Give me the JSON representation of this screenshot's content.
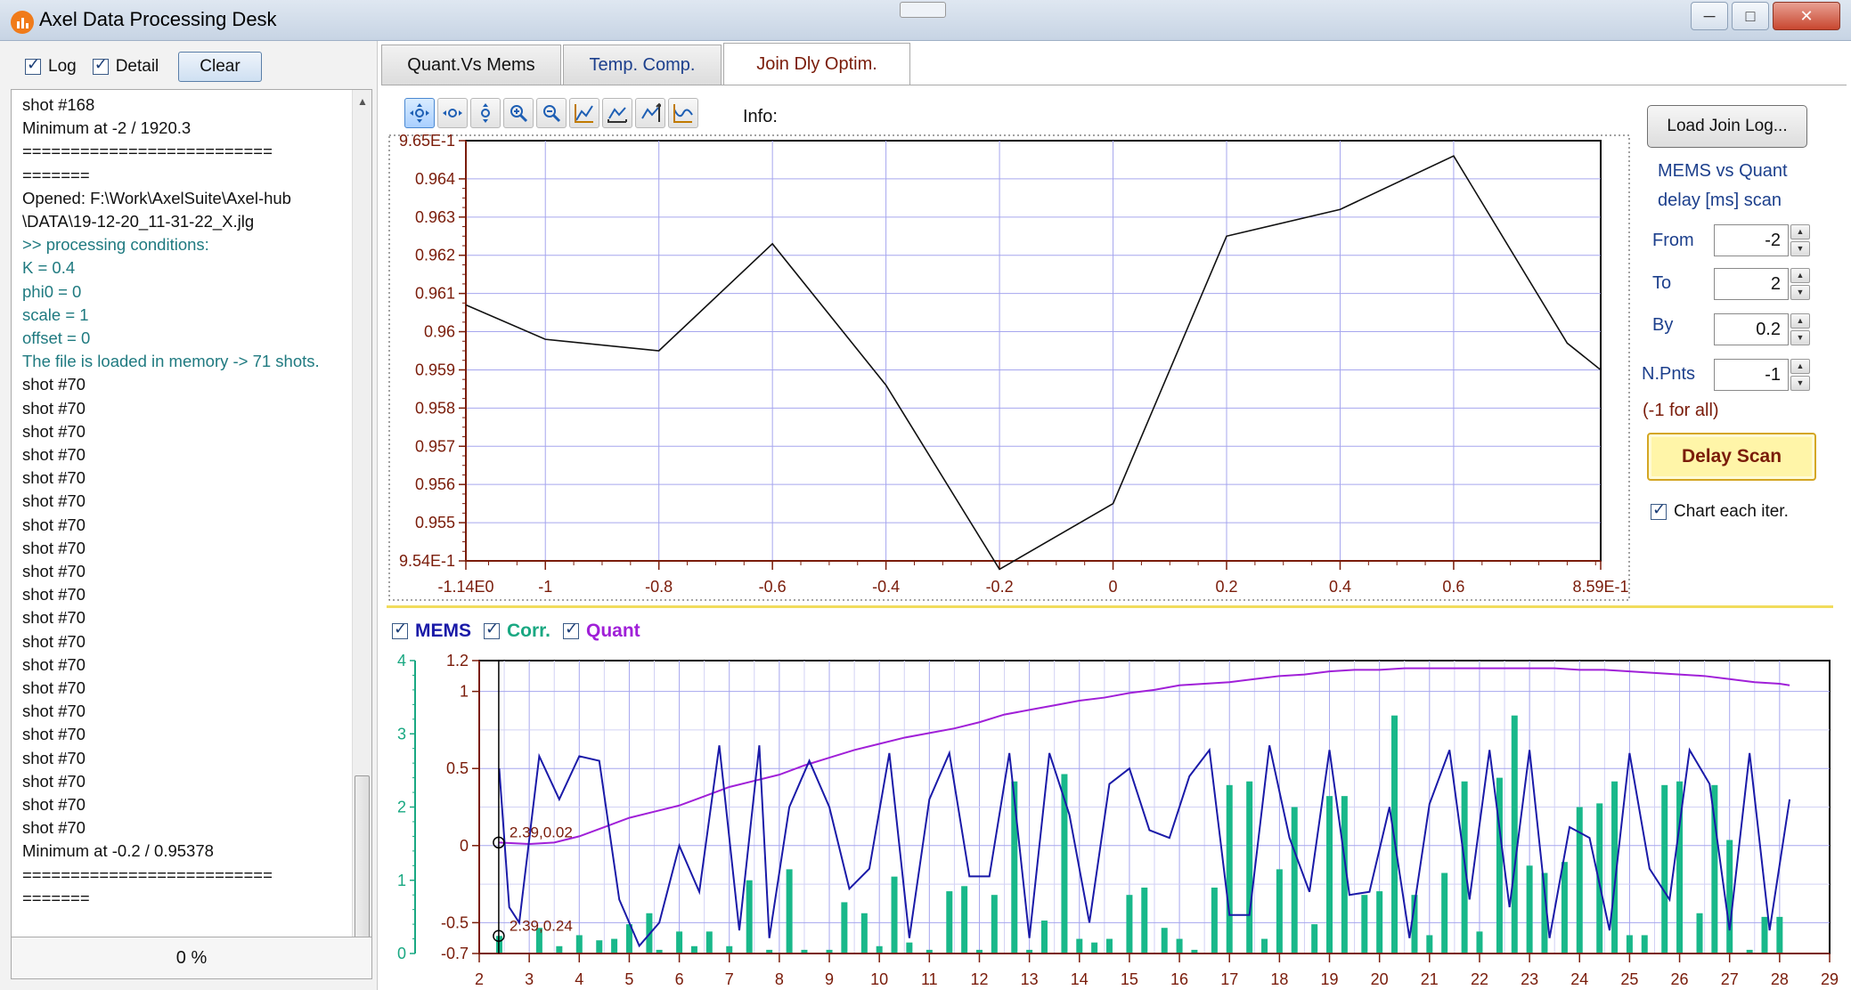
{
  "window": {
    "title": "Axel Data Processing Desk"
  },
  "left_panel": {
    "log_label": "Log",
    "detail_label": "Detail",
    "clear_label": "Clear",
    "progress": "0 %",
    "log_lines": [
      {
        "text": "shot #168",
        "style": "normal"
      },
      {
        "text": "Minimum at -2 / 1920.3",
        "style": "normal"
      },
      {
        "text": "==========================",
        "style": "normal"
      },
      {
        "text": "=======",
        "style": "normal"
      },
      {
        "text": "Opened: F:\\Work\\AxelSuite\\Axel-hub",
        "style": "normal"
      },
      {
        "text": "\\DATA\\19-12-20_11-31-22_X.jlg",
        "style": "normal"
      },
      {
        "text": ">> processing conditions:",
        "style": "teal"
      },
      {
        "text": "K = 0.4",
        "style": "teal"
      },
      {
        "text": "phi0 = 0",
        "style": "teal"
      },
      {
        "text": "scale = 1",
        "style": "teal"
      },
      {
        "text": "offset = 0",
        "style": "teal"
      },
      {
        "text": "The file is loaded in memory -> 71 shots.",
        "style": "teal"
      },
      {
        "text": "shot #70",
        "style": "normal"
      },
      {
        "text": "shot #70",
        "style": "normal"
      },
      {
        "text": "shot #70",
        "style": "normal"
      },
      {
        "text": "shot #70",
        "style": "normal"
      },
      {
        "text": "shot #70",
        "style": "normal"
      },
      {
        "text": "shot #70",
        "style": "normal"
      },
      {
        "text": "shot #70",
        "style": "normal"
      },
      {
        "text": "shot #70",
        "style": "normal"
      },
      {
        "text": "shot #70",
        "style": "normal"
      },
      {
        "text": "shot #70",
        "style": "normal"
      },
      {
        "text": "shot #70",
        "style": "normal"
      },
      {
        "text": "shot #70",
        "style": "normal"
      },
      {
        "text": "shot #70",
        "style": "normal"
      },
      {
        "text": "shot #70",
        "style": "normal"
      },
      {
        "text": "shot #70",
        "style": "normal"
      },
      {
        "text": "shot #70",
        "style": "normal"
      },
      {
        "text": "shot #70",
        "style": "normal"
      },
      {
        "text": "shot #70",
        "style": "normal"
      },
      {
        "text": "shot #70",
        "style": "normal"
      },
      {
        "text": "shot #70",
        "style": "normal"
      },
      {
        "text": "Minimum at -0.2 / 0.95378",
        "style": "normal"
      },
      {
        "text": "==========================",
        "style": "normal"
      },
      {
        "text": "=======",
        "style": "normal"
      }
    ]
  },
  "tabs": [
    {
      "label": "Quant.Vs Mems",
      "active": false,
      "color": "#111111"
    },
    {
      "label": "Temp. Comp.",
      "active": false,
      "color": "#1c3f8c"
    },
    {
      "label": "Join Dly Optim.",
      "active": true,
      "color": "#7a1c0a"
    }
  ],
  "toolbar": {
    "info_label": "Info:",
    "buttons": [
      "pan-icon",
      "pan-horizontal-icon",
      "pan-vertical-icon",
      "zoom-in-icon",
      "zoom-out-icon",
      "autoscale-icon",
      "autoscale-x-icon",
      "autoscale-y-icon",
      "fit-icon"
    ]
  },
  "right_controls": {
    "load_button": "Load Join Log...",
    "scan_title_line1": "MEMS vs Quant",
    "scan_title_line2": "delay [ms] scan",
    "from_label": "From",
    "from_value": "-2",
    "to_label": "To",
    "to_value": "2",
    "by_label": "By",
    "by_value": "0.2",
    "npnts_label": "N.Pnts",
    "npnts_value": "-1",
    "npnts_hint": "(-1 for all)",
    "delay_scan_button": "Delay Scan",
    "chart_each_label": "Chart each iter."
  },
  "legend": {
    "mems_label": "MEMS",
    "corr_label": "Corr.",
    "quant_label": "Quant",
    "mems_color": "#1a1aa8",
    "corr_color": "#19a882",
    "quant_color": "#a020d8"
  },
  "chart_data": [
    {
      "type": "line",
      "x_ticks": [
        "-1.14E0",
        "-1",
        "-0.8",
        "-0.6",
        "-0.4",
        "-0.2",
        "0",
        "0.2",
        "0.4",
        "0.6",
        "8.59E-1"
      ],
      "y_ticks": [
        "9.65E-1",
        "0.964",
        "0.963",
        "0.962",
        "0.961",
        "0.96",
        "0.959",
        "0.958",
        "0.957",
        "0.956",
        "0.955",
        "9.54E-1"
      ],
      "xlim": [
        -1.14,
        0.859
      ],
      "ylim": [
        0.954,
        0.965
      ],
      "x": [
        -1.14,
        -1.0,
        -0.8,
        -0.6,
        -0.4,
        -0.2,
        0.0,
        0.2,
        0.4,
        0.6,
        0.8,
        0.859
      ],
      "y": [
        0.9607,
        0.9598,
        0.9595,
        0.9623,
        0.9586,
        0.95378,
        0.9555,
        0.9625,
        0.9632,
        0.9646,
        0.9597,
        0.959
      ],
      "line_color": "#111111",
      "grid": true
    },
    {
      "type": "line+bar",
      "x_ticks": [
        "2",
        "3",
        "4",
        "5",
        "6",
        "7",
        "8",
        "9",
        "10",
        "11",
        "12",
        "13",
        "14",
        "15",
        "16",
        "17",
        "18",
        "19",
        "20",
        "21",
        "22",
        "23",
        "24",
        "25",
        "26",
        "27",
        "28",
        "29"
      ],
      "xlim": [
        2,
        29
      ],
      "y_left_outer_ticks": [
        "4",
        "3",
        "2",
        "1",
        "0"
      ],
      "y_left_outer_lim": [
        0,
        4
      ],
      "y_left_inner_ticks": [
        "1.2",
        "1",
        "0.5",
        "0",
        "-0.5",
        "-0.7"
      ],
      "y_left_inner_lim": [
        -0.7,
        1.2
      ],
      "cursor_labels": [
        "2.39,0.02",
        "2.39,0.24"
      ],
      "cursor_x": 2.39,
      "mems": {
        "x": [
          2.4,
          2.6,
          2.8,
          3.2,
          3.6,
          4.0,
          4.4,
          4.8,
          5.2,
          5.6,
          6.0,
          6.4,
          6.8,
          7.2,
          7.6,
          7.8,
          8.2,
          8.6,
          9.0,
          9.4,
          9.8,
          10.2,
          10.6,
          11.0,
          11.4,
          11.8,
          12.2,
          12.6,
          13.0,
          13.4,
          13.8,
          14.2,
          14.6,
          15.0,
          15.4,
          15.8,
          16.2,
          16.6,
          17.0,
          17.4,
          17.8,
          18.2,
          18.6,
          19.0,
          19.4,
          19.8,
          20.2,
          20.6,
          21.0,
          21.4,
          21.8,
          22.2,
          22.6,
          23.0,
          23.4,
          23.8,
          24.2,
          24.6,
          25.0,
          25.4,
          25.8,
          26.2,
          26.6,
          27.0,
          27.4,
          27.8,
          28.2
        ],
        "y": [
          0.5,
          -0.4,
          -0.5,
          0.58,
          0.3,
          0.58,
          0.55,
          -0.35,
          -0.65,
          -0.5,
          0.0,
          -0.3,
          0.65,
          -0.55,
          0.65,
          -0.6,
          0.25,
          0.55,
          0.25,
          -0.28,
          -0.15,
          0.6,
          -0.6,
          0.3,
          0.6,
          -0.2,
          -0.2,
          0.6,
          -0.6,
          0.6,
          0.2,
          -0.5,
          0.4,
          0.5,
          0.1,
          0.05,
          0.45,
          0.62,
          -0.45,
          -0.45,
          0.65,
          0.05,
          -0.3,
          0.62,
          -0.32,
          -0.3,
          0.25,
          -0.6,
          0.27,
          0.62,
          -0.35,
          0.62,
          -0.4,
          0.62,
          -0.6,
          0.12,
          0.05,
          -0.55,
          0.6,
          -0.15,
          -0.35,
          0.62,
          0.4,
          -0.55,
          0.6,
          -0.55,
          0.3
        ]
      },
      "quant": {
        "x": [
          2.4,
          3.0,
          3.5,
          4.0,
          4.5,
          5.0,
          5.5,
          6.0,
          6.5,
          7.0,
          7.5,
          8.0,
          8.5,
          9.0,
          9.5,
          10.0,
          10.5,
          11.0,
          11.5,
          12.0,
          12.5,
          13.0,
          13.5,
          14.0,
          14.5,
          15.0,
          15.5,
          16.0,
          16.5,
          17.0,
          17.5,
          18.0,
          18.5,
          19.0,
          19.5,
          20.0,
          20.5,
          21.0,
          21.5,
          22.0,
          22.5,
          23.0,
          23.5,
          24.0,
          24.5,
          25.0,
          25.5,
          26.0,
          26.5,
          27.0,
          27.5,
          28.0,
          28.2
        ],
        "y": [
          0.02,
          0.01,
          0.02,
          0.06,
          0.12,
          0.18,
          0.22,
          0.26,
          0.32,
          0.38,
          0.42,
          0.46,
          0.52,
          0.57,
          0.62,
          0.66,
          0.7,
          0.73,
          0.76,
          0.8,
          0.85,
          0.88,
          0.91,
          0.94,
          0.96,
          0.99,
          1.01,
          1.04,
          1.05,
          1.06,
          1.08,
          1.1,
          1.11,
          1.13,
          1.14,
          1.14,
          1.15,
          1.15,
          1.15,
          1.15,
          1.15,
          1.15,
          1.15,
          1.14,
          1.14,
          1.13,
          1.12,
          1.11,
          1.1,
          1.08,
          1.06,
          1.05,
          1.04
        ]
      },
      "corr": {
        "x": [
          2.4,
          3.2,
          3.6,
          4.0,
          4.4,
          4.7,
          5.0,
          5.4,
          5.6,
          6.0,
          6.3,
          6.6,
          7.0,
          7.4,
          7.8,
          8.2,
          8.5,
          9.0,
          9.3,
          9.7,
          10.0,
          10.3,
          10.6,
          11.0,
          11.4,
          11.7,
          12.0,
          12.3,
          12.7,
          13.0,
          13.3,
          13.7,
          14.0,
          14.3,
          14.6,
          15.0,
          15.3,
          15.7,
          16.0,
          16.3,
          16.7,
          17.0,
          17.4,
          17.7,
          18.0,
          18.3,
          18.7,
          19.0,
          19.3,
          19.7,
          20.0,
          20.3,
          20.7,
          21.0,
          21.3,
          21.7,
          22.0,
          22.4,
          22.7,
          23.0,
          23.3,
          23.7,
          24.0,
          24.4,
          24.7,
          25.0,
          25.3,
          25.7,
          26.0,
          26.4,
          26.7,
          27.0,
          27.4,
          27.7,
          28.0
        ],
        "y": [
          0.24,
          0.35,
          0.1,
          0.25,
          0.18,
          0.2,
          0.4,
          0.55,
          0.05,
          0.3,
          0.1,
          0.3,
          0.1,
          1.0,
          0.05,
          1.15,
          0.05,
          0.05,
          0.7,
          0.55,
          0.1,
          1.05,
          0.15,
          0.05,
          0.85,
          0.92,
          0.05,
          0.8,
          2.35,
          0.05,
          0.45,
          2.45,
          0.2,
          0.15,
          0.2,
          0.8,
          0.9,
          0.35,
          0.2,
          0.05,
          0.9,
          2.3,
          2.35,
          0.2,
          1.15,
          2.0,
          0.4,
          2.15,
          2.15,
          0.8,
          0.85,
          3.25,
          0.8,
          0.25,
          1.1,
          2.35,
          0.3,
          2.4,
          3.25,
          1.2,
          1.1,
          1.25,
          2.0,
          2.05,
          2.35,
          0.25,
          0.25,
          2.3,
          2.35,
          0.55,
          2.3,
          1.55,
          0.05,
          0.5,
          0.5
        ]
      }
    }
  ]
}
